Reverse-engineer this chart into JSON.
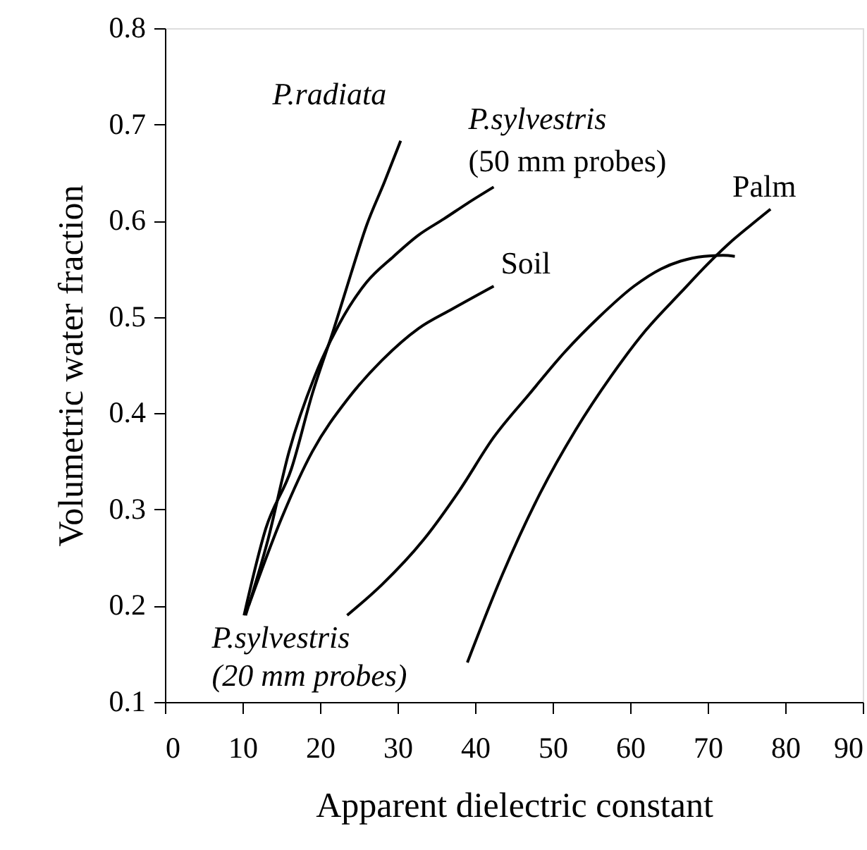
{
  "chart_data": {
    "type": "line",
    "xlabel": "Apparent dielectric constant",
    "ylabel": "Volumetric water fraction",
    "xlim": [
      0,
      90
    ],
    "ylim": [
      0.1,
      0.8
    ],
    "xticks": [
      0,
      10,
      20,
      30,
      40,
      50,
      60,
      70,
      80,
      90
    ],
    "yticks": [
      0.1,
      0.2,
      0.3,
      0.4,
      0.5,
      0.6,
      0.7,
      0.8
    ],
    "grid": false,
    "marker": "none",
    "line_style": "solid",
    "series": [
      {
        "name": "P.radiata",
        "color": "#000000",
        "x": [
          10.2,
          13,
          16.3,
          19,
          21.8,
          24,
          26,
          28.3,
          30.4
        ],
        "values": [
          0.19,
          0.28,
          0.342,
          0.42,
          0.488,
          0.545,
          0.595,
          0.64,
          0.683
        ]
      },
      {
        "name": "P.sylvestris\n(50 mm probes)",
        "color": "#000000",
        "x": [
          10.4,
          13.3,
          16,
          19.3,
          22.5,
          26,
          29.5,
          32.7,
          36,
          39,
          42.4
        ],
        "values": [
          0.19,
          0.269,
          0.36,
          0.438,
          0.493,
          0.536,
          0.563,
          0.585,
          0.602,
          0.618,
          0.635
        ]
      },
      {
        "name": "Soil",
        "color": "#000000",
        "x": [
          10.8,
          15.1,
          19,
          23.6,
          28,
          32.7,
          37,
          42.4
        ],
        "values": [
          0.2,
          0.292,
          0.36,
          0.415,
          0.455,
          0.488,
          0.508,
          0.532
        ]
      },
      {
        "name": "P.sylvestris\n(20 mm probes)",
        "color": "#000000",
        "x": [
          23.5,
          28,
          33.3,
          38,
          42.4,
          47,
          51.5,
          56,
          60.5,
          64,
          66.5,
          69.5,
          72,
          73.5
        ],
        "values": [
          0.19,
          0.222,
          0.268,
          0.32,
          0.375,
          0.42,
          0.463,
          0.5,
          0.532,
          0.55,
          0.558,
          0.563,
          0.564,
          0.563
        ]
      },
      {
        "name": "Palm",
        "color": "#000000",
        "x": [
          39,
          43.5,
          48.4,
          53,
          57.5,
          62,
          66.6,
          70,
          72.7,
          75.5,
          78.1
        ],
        "values": [
          0.141,
          0.232,
          0.317,
          0.383,
          0.438,
          0.486,
          0.526,
          0.555,
          0.576,
          0.595,
          0.612
        ]
      }
    ]
  }
}
